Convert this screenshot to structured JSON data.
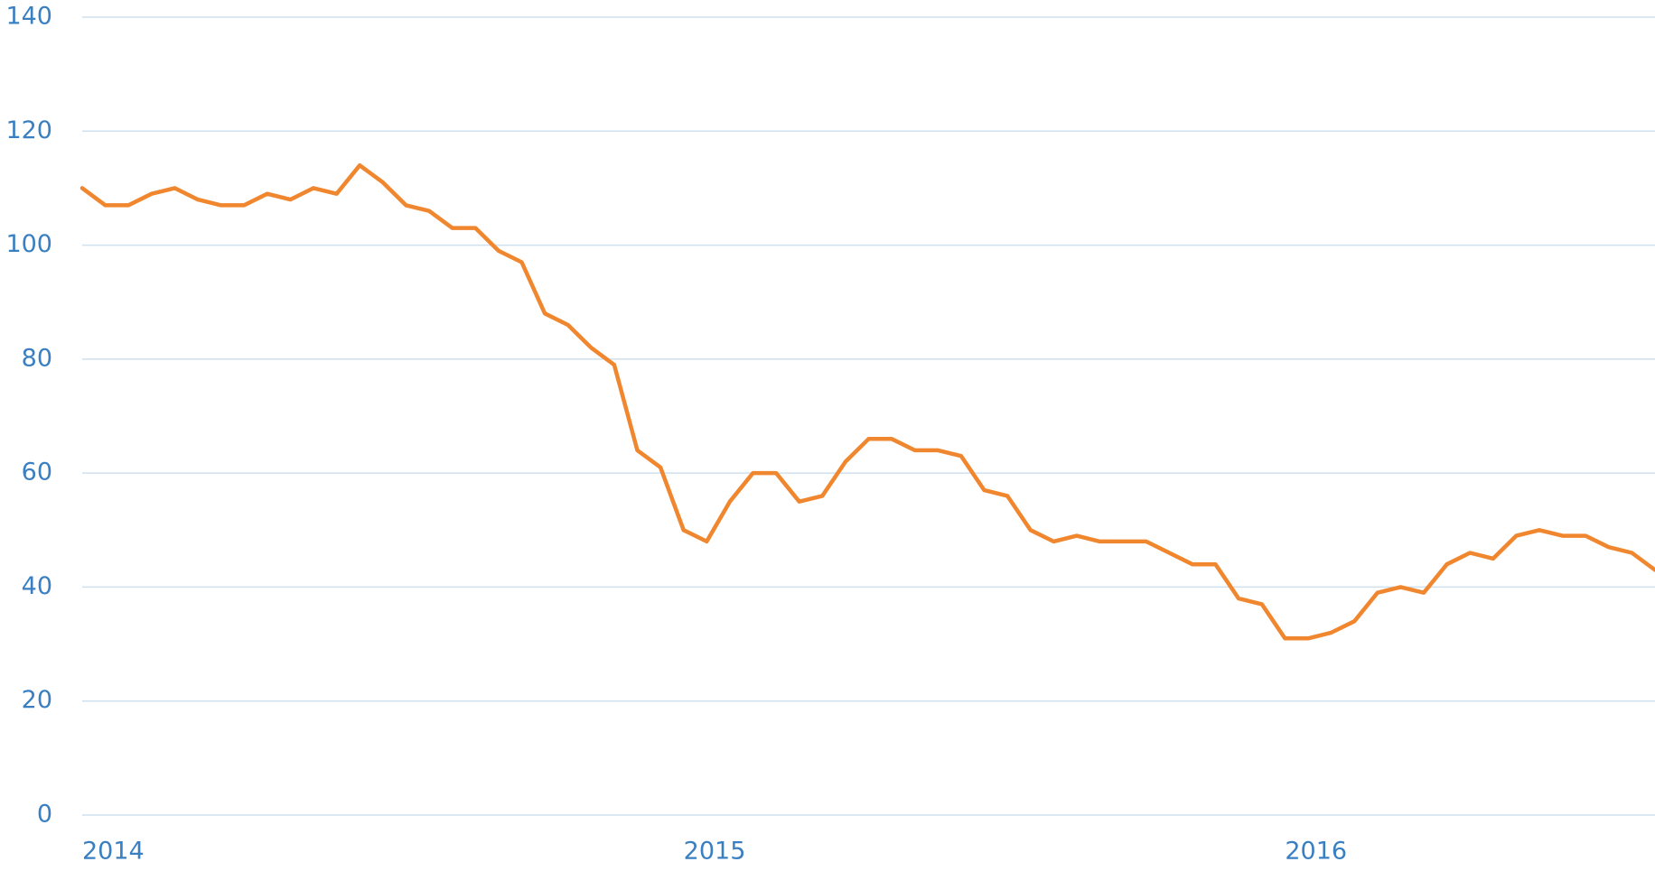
{
  "chart_data": {
    "type": "line",
    "categories": [
      "2014",
      null,
      null,
      null,
      null,
      null,
      null,
      null,
      null,
      null,
      null,
      null,
      null,
      null,
      null,
      null,
      null,
      null,
      null,
      null,
      null,
      null,
      null,
      null,
      null,
      null,
      "2015",
      null,
      null,
      null,
      null,
      null,
      null,
      null,
      null,
      null,
      null,
      null,
      null,
      null,
      null,
      null,
      null,
      null,
      null,
      null,
      null,
      null,
      null,
      null,
      null,
      null,
      "2016",
      null,
      null,
      null,
      null,
      null,
      null,
      null,
      null,
      null,
      null,
      null,
      null,
      null,
      null,
      null,
      null
    ],
    "series": [
      {
        "color": "#f0862e",
        "values": [
          110,
          107,
          107,
          109,
          110,
          108,
          107,
          107,
          109,
          108,
          110,
          109,
          114,
          111,
          107,
          106,
          103,
          103,
          99,
          97,
          88,
          86,
          82,
          79,
          64,
          61,
          50,
          48,
          55,
          60,
          60,
          55,
          56,
          62,
          66,
          66,
          64,
          64,
          63,
          57,
          56,
          50,
          48,
          49,
          48,
          48,
          48,
          46,
          44,
          44,
          38,
          37,
          31,
          31,
          32,
          34,
          39,
          40,
          39,
          44,
          46,
          45,
          49,
          50,
          49,
          49,
          47,
          46,
          43
        ]
      }
    ],
    "ylim": [
      0,
      140
    ],
    "yticks": [
      0,
      20,
      40,
      60,
      80,
      100,
      120,
      140
    ],
    "grid": true
  }
}
